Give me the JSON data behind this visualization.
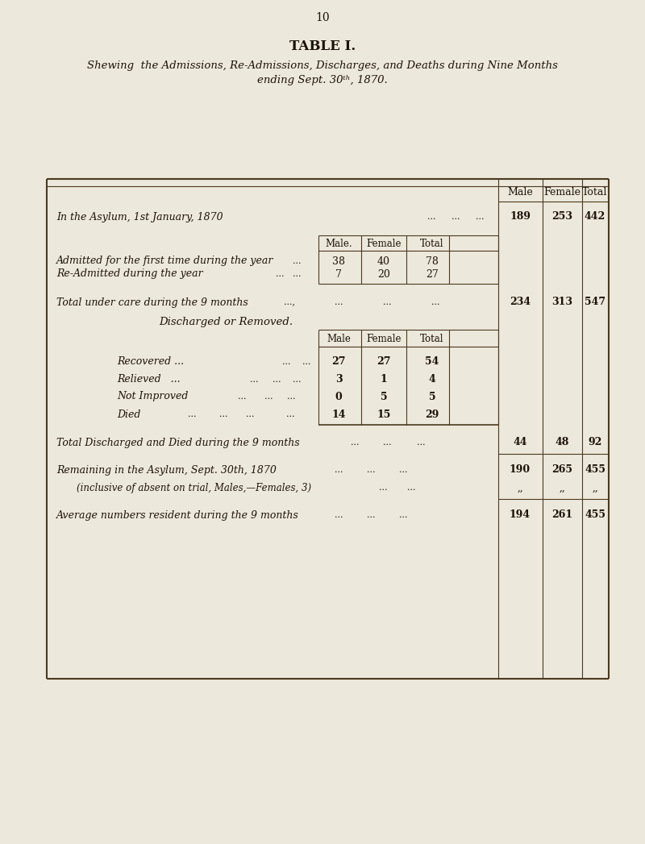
{
  "page_number": "10",
  "title": "TABLE I.",
  "subtitle_line1": "Shewing  the Admissions, Re-Admissions, Discharges, and Deaths during Nine Months",
  "subtitle_line2": "ending Sept. 30ᵗʰ, 1870.",
  "bg_color": "#ede8dc",
  "text_color": "#1a1208",
  "border_color": "#4a3a20",
  "section1_label": "In the Asylum, 1st January, 1870",
  "section1_male": "189",
  "section1_female": "253",
  "section1_total": "442",
  "inner_header_male": "Male.",
  "inner_header_female": "Female",
  "inner_header_total": "Total",
  "outer_header_male": "Male",
  "outer_header_female": "Female",
  "outer_header_total": "Total",
  "admitted_label": "Admitted for the first time during the year",
  "admitted_male": "38",
  "admitted_female": "40",
  "admitted_total": "78",
  "readmitted_label": "Re-Admitted during the year",
  "readmitted_male": "7",
  "readmitted_female": "20",
  "readmitted_total": "27",
  "total_care_label": "Total under care during the 9 months",
  "total_care_male": "234",
  "total_care_female": "313",
  "total_care_total": "547",
  "discharge_section_label": "Discharged or Removed.",
  "discharge_header_male": "Male",
  "discharge_header_female": "Female",
  "discharge_header_total": "Total",
  "recovered_label": "Recovered ...",
  "recovered_male": "27",
  "recovered_female": "27",
  "recovered_total": "54",
  "relieved_label": "Relieved   ...",
  "relieved_male": "3",
  "relieved_female": "1",
  "relieved_total": "4",
  "not_improved_label": "Not Improved",
  "not_improved_male": "0",
  "not_improved_female": "5",
  "not_improved_total": "5",
  "died_label": "Died",
  "died_male": "14",
  "died_female": "15",
  "died_total": "29",
  "total_discharged_label": "Total Discharged and Died during the 9 months",
  "total_discharged_male": "44",
  "total_discharged_female": "48",
  "total_discharged_total": "92",
  "remaining_label": "Remaining in the Asylum, Sept. 30th, 1870",
  "remaining_male": "190",
  "remaining_female": "265",
  "remaining_total": "455",
  "inclusive_label": "(inclusive of absent on trial, Males,—Females, 3)",
  "inclusive_male": ",,",
  "inclusive_female": ",,",
  "inclusive_total": ",,",
  "average_label": "Average numbers resident during the 9 months",
  "average_male": "194",
  "average_female": "261",
  "average_total": "455"
}
